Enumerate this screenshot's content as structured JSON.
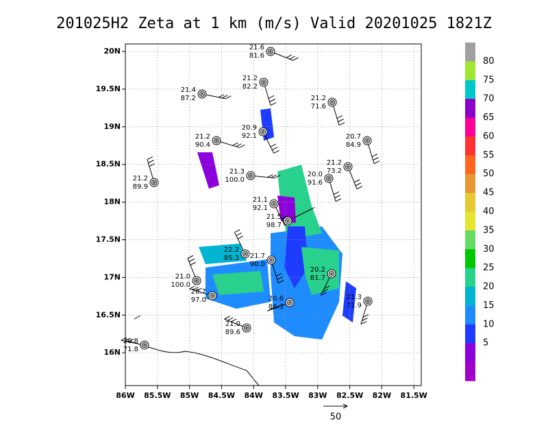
{
  "title": "201025H2 Zeta at 1 km (m/s) Valid 20201025 1821Z",
  "lon_labels": [
    "86W",
    "85.5W",
    "85W",
    "84.5W",
    "84W",
    "83.5W",
    "83W",
    "82.5W",
    "82W",
    "81.5W"
  ],
  "lat_labels": [
    "20N",
    "19.5N",
    "19N",
    "18.5N",
    "18N",
    "17.5N",
    "17N",
    "16.5N",
    "16N"
  ],
  "colorbar": {
    "labels": [
      "80",
      "75",
      "70",
      "65",
      "60",
      "55",
      "50",
      "45",
      "40",
      "35",
      "30",
      "25",
      "20",
      "15",
      "10",
      "5"
    ],
    "colors": [
      "#a0a0a0",
      "#a0e632",
      "#00c8c8",
      "#8c00c8",
      "#ff0096",
      "#ff3232",
      "#ff6420",
      "#e69632",
      "#e6c832",
      "#e6e632",
      "#64dc64",
      "#00c800",
      "#28d28c",
      "#00b4d2",
      "#1e8cff",
      "#1e3cff",
      "#8c00dc",
      "#a000c8"
    ]
  },
  "stations": [
    {
      "top": "21.6",
      "bottom": "81.6"
    },
    {
      "top": "21.2",
      "bottom": "82.2"
    },
    {
      "top": "21.4",
      "bottom": "87.2"
    },
    {
      "top": "21.2",
      "bottom": "71.6"
    },
    {
      "top": "20.9",
      "bottom": "92.1"
    },
    {
      "top": "21.2",
      "bottom": "90.4"
    },
    {
      "top": "20.7",
      "bottom": "84.9"
    },
    {
      "top": "21.2",
      "bottom": "89.9"
    },
    {
      "top": "21.2",
      "bottom": "73.2"
    },
    {
      "top": "21.3",
      "bottom": "100.0"
    },
    {
      "top": "20.0",
      "bottom": "91.6"
    },
    {
      "top": "21.1",
      "bottom": "92.1"
    },
    {
      "top": "21.5",
      "bottom": "98.7"
    },
    {
      "top": "22.2",
      "bottom": "85.3"
    },
    {
      "top": "21.7",
      "bottom": "90.0"
    },
    {
      "top": "21.0",
      "bottom": "100.0"
    },
    {
      "top": "20.2",
      "bottom": "81.7"
    },
    {
      "top": "20.7",
      "bottom": "97.0"
    },
    {
      "top": "20.6",
      "bottom": "86.3"
    },
    {
      "top": "21.3",
      "bottom": "71.9"
    },
    {
      "top": "21.0",
      "bottom": "89.6"
    },
    {
      "top": "20.8",
      "bottom": "71.8"
    }
  ],
  "vector_scale_label": "50"
}
